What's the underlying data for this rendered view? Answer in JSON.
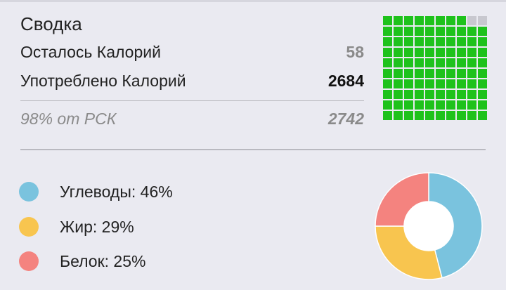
{
  "summary": {
    "title": "Сводка",
    "remaining_label": "Осталось Калорий",
    "remaining_value": "58",
    "consumed_label": "Употреблено Калорий",
    "consumed_value": "2684",
    "rsk_label": "98% от РСК",
    "rsk_value": "2742"
  },
  "waffle": {
    "filled": 98,
    "total": 100,
    "filled_color": "#1ec21b",
    "empty_color": "#c8c8cf"
  },
  "macros": [
    {
      "label": "Углеводы: 46%",
      "percent": 46,
      "color": "#7ac3de"
    },
    {
      "label": "Жир: 29%",
      "percent": 29,
      "color": "#f8c54f"
    },
    {
      "label": "Белок: 25%",
      "percent": 25,
      "color": "#f4837f"
    }
  ],
  "colors": {
    "background": "#eaeaf1",
    "divider": "#b9b9c0"
  }
}
